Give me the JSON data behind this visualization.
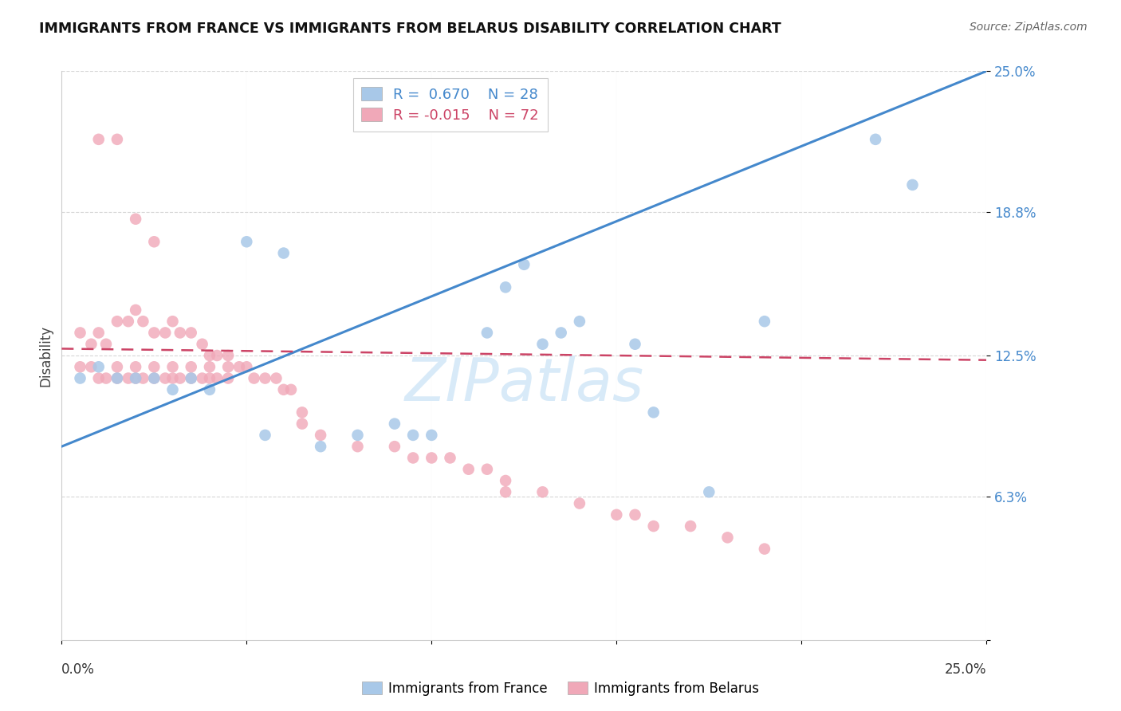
{
  "title": "IMMIGRANTS FROM FRANCE VS IMMIGRANTS FROM BELARUS DISABILITY CORRELATION CHART",
  "source": "Source: ZipAtlas.com",
  "ylabel": "Disability",
  "xlim": [
    0.0,
    0.25
  ],
  "ylim": [
    0.0,
    0.25
  ],
  "ytick_positions": [
    0.0,
    0.063,
    0.125,
    0.188,
    0.25
  ],
  "ytick_labels": [
    "",
    "6.3%",
    "12.5%",
    "18.8%",
    "25.0%"
  ],
  "xtick_positions": [
    0.0,
    0.05,
    0.1,
    0.15,
    0.2,
    0.25
  ],
  "france_R": 0.67,
  "france_N": 28,
  "belarus_R": -0.015,
  "belarus_N": 72,
  "france_color": "#a8c8e8",
  "france_line_color": "#4488cc",
  "belarus_color": "#f0a8b8",
  "belarus_line_color": "#cc4466",
  "background_color": "#ffffff",
  "france_line_x0": 0.0,
  "france_line_y0": 0.085,
  "france_line_x1": 0.25,
  "france_line_y1": 0.25,
  "belarus_line_x0": 0.0,
  "belarus_line_y0": 0.128,
  "belarus_line_x1": 0.25,
  "belarus_line_y1": 0.123,
  "france_x": [
    0.005,
    0.01,
    0.015,
    0.02,
    0.025,
    0.03,
    0.035,
    0.04,
    0.055,
    0.07,
    0.08,
    0.09,
    0.095,
    0.1,
    0.115,
    0.13,
    0.135,
    0.14,
    0.155,
    0.16,
    0.175,
    0.19,
    0.22,
    0.23,
    0.12,
    0.125,
    0.05,
    0.06
  ],
  "france_y": [
    0.115,
    0.12,
    0.115,
    0.115,
    0.115,
    0.11,
    0.115,
    0.11,
    0.09,
    0.085,
    0.09,
    0.095,
    0.09,
    0.09,
    0.135,
    0.13,
    0.135,
    0.14,
    0.13,
    0.1,
    0.065,
    0.14,
    0.22,
    0.2,
    0.155,
    0.165,
    0.175,
    0.17
  ],
  "belarus_x": [
    0.005,
    0.008,
    0.01,
    0.012,
    0.015,
    0.015,
    0.018,
    0.02,
    0.02,
    0.022,
    0.025,
    0.025,
    0.028,
    0.03,
    0.03,
    0.032,
    0.035,
    0.035,
    0.038,
    0.04,
    0.04,
    0.042,
    0.045,
    0.045,
    0.005,
    0.008,
    0.01,
    0.012,
    0.015,
    0.018,
    0.02,
    0.022,
    0.025,
    0.028,
    0.03,
    0.032,
    0.035,
    0.038,
    0.04,
    0.042,
    0.045,
    0.048,
    0.05,
    0.052,
    0.055,
    0.058,
    0.06,
    0.062,
    0.065,
    0.065,
    0.07,
    0.08,
    0.09,
    0.095,
    0.1,
    0.105,
    0.11,
    0.115,
    0.12,
    0.12,
    0.13,
    0.14,
    0.15,
    0.155,
    0.16,
    0.17,
    0.18,
    0.19,
    0.01,
    0.015,
    0.02,
    0.025
  ],
  "belarus_y": [
    0.12,
    0.12,
    0.115,
    0.115,
    0.12,
    0.115,
    0.115,
    0.12,
    0.115,
    0.115,
    0.12,
    0.115,
    0.115,
    0.12,
    0.115,
    0.115,
    0.12,
    0.115,
    0.115,
    0.12,
    0.115,
    0.115,
    0.12,
    0.115,
    0.135,
    0.13,
    0.135,
    0.13,
    0.14,
    0.14,
    0.145,
    0.14,
    0.135,
    0.135,
    0.14,
    0.135,
    0.135,
    0.13,
    0.125,
    0.125,
    0.125,
    0.12,
    0.12,
    0.115,
    0.115,
    0.115,
    0.11,
    0.11,
    0.1,
    0.095,
    0.09,
    0.085,
    0.085,
    0.08,
    0.08,
    0.08,
    0.075,
    0.075,
    0.07,
    0.065,
    0.065,
    0.06,
    0.055,
    0.055,
    0.05,
    0.05,
    0.045,
    0.04,
    0.22,
    0.22,
    0.185,
    0.175
  ]
}
